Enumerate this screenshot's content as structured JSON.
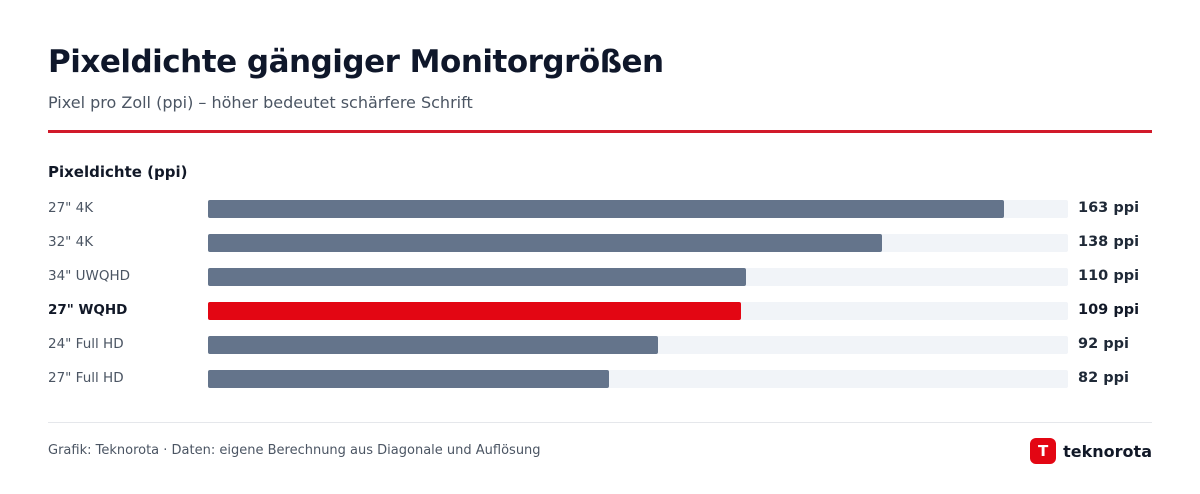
{
  "header": {
    "title": "Pixeldichte gängiger Monitorgrößen",
    "subtitle": "Pixel pro Zoll (ppi) – höher bedeutet schärfere Schrift"
  },
  "footer": {
    "source": "Grafik: Teknorota · Daten: eigene Berechnung aus Diagonale und Auflösung",
    "brand_letter": "T",
    "brand_name": "teknorota"
  },
  "colors": {
    "bar": "#64748b",
    "highlight": "#e30613",
    "track": "#f1f4f8",
    "accent_rule": "#d11a2a"
  },
  "chart_data": {
    "type": "bar",
    "orientation": "horizontal",
    "title": "Pixeldichte gängiger Monitorgrößen",
    "subtitle": "Pixel pro Zoll (ppi) – höher bedeutet schärfere Schrift",
    "xlabel": "",
    "ylabel": "",
    "axis_title": "Pixeldichte (ppi)",
    "unit": "ppi",
    "xlim": [
      0,
      176
    ],
    "grid": false,
    "legend": "none",
    "highlight_category": "27\" WQHD",
    "categories": [
      "27\" 4K",
      "32\" 4K",
      "34\" UWQHD",
      "27\" WQHD",
      "24\" Full HD",
      "27\" Full HD"
    ],
    "values": [
      163,
      138,
      110,
      109,
      92,
      82
    ],
    "value_labels": [
      "163 ppi",
      "138 ppi",
      "110 ppi",
      "109 ppi",
      "92 ppi",
      "82 ppi"
    ]
  }
}
